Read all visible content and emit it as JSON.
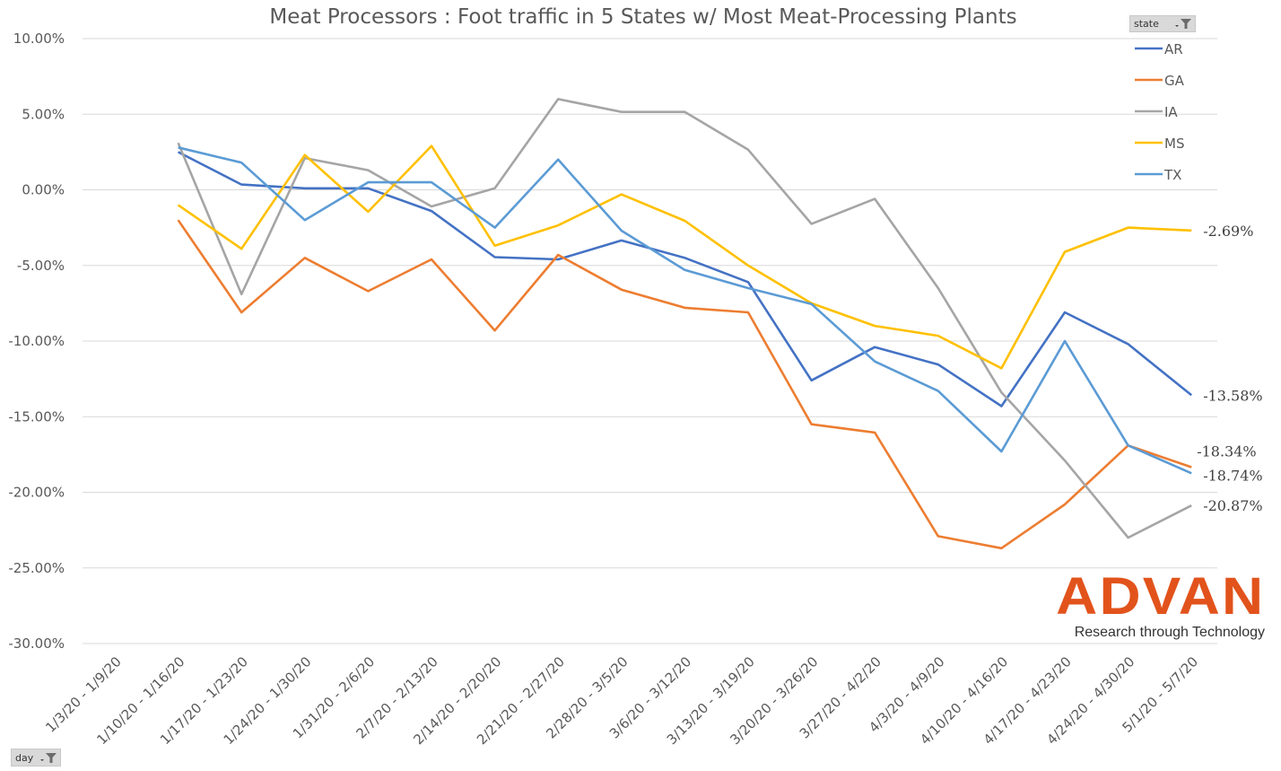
{
  "chart_data": {
    "type": "line",
    "title": "Meat Processors : Foot traffic in 5 States w/ Most Meat-Processing Plants",
    "xlabel": "",
    "ylabel": "",
    "ylim": [
      -30,
      10
    ],
    "ytick_step": 5,
    "ytick_labels": [
      "10.00%",
      "5.00%",
      "0.00%",
      "-5.00%",
      "-10.00%",
      "-15.00%",
      "-20.00%",
      "-25.00%",
      "-30.00%"
    ],
    "grid": true,
    "legend_position": "top-right",
    "categories": [
      "1/3/20 - 1/9/20",
      "1/10/20 - 1/16/20",
      "1/17/20 - 1/23/20",
      "1/24/20 - 1/30/20",
      "1/31/20 - 2/6/20",
      "2/7/20 - 2/13/20",
      "2/14/20 - 2/20/20",
      "2/21/20 - 2/27/20",
      "2/28/20 - 3/5/20",
      "3/6/20 - 3/12/20",
      "3/13/20 - 3/19/20",
      "3/20/20 - 3/26/20",
      "3/27/20 - 4/2/20",
      "4/3/20 - 4/9/20",
      "4/10/20 - 4/16/20",
      "4/17/20 - 4/23/20",
      "4/24/20 - 4/30/20",
      "5/1/20 - 5/7/20"
    ],
    "series": [
      {
        "name": "AR",
        "color": "#4472c4",
        "end_label": "-13.58%",
        "values": [
          null,
          2.5,
          0.35,
          0.1,
          0.1,
          -1.4,
          -4.45,
          -4.6,
          -3.35,
          -4.5,
          -6.1,
          -12.6,
          -10.4,
          -11.55,
          -14.3,
          -8.1,
          -10.2,
          -13.58
        ]
      },
      {
        "name": "GA",
        "color": "#ed7d31",
        "end_label": "-18.34%",
        "values": [
          null,
          -2.0,
          -8.1,
          -4.5,
          -6.7,
          -4.6,
          -9.3,
          -4.3,
          -6.6,
          -7.8,
          -8.1,
          -15.5,
          -16.05,
          -22.9,
          -23.7,
          -20.8,
          -16.9,
          -18.34
        ]
      },
      {
        "name": "IA",
        "color": "#a5a5a5",
        "end_label": "-20.87%",
        "values": [
          null,
          3.1,
          -6.9,
          2.1,
          1.3,
          -1.1,
          0.1,
          6.0,
          5.15,
          5.15,
          2.65,
          -2.25,
          -0.6,
          -6.5,
          -13.4,
          -17.9,
          -23.0,
          -20.87
        ]
      },
      {
        "name": "MS",
        "color": "#ffc000",
        "end_label": "-2.69%",
        "values": [
          null,
          -1.0,
          -3.9,
          2.3,
          -1.45,
          2.9,
          -3.7,
          -2.35,
          -0.3,
          -2.05,
          -5.0,
          -7.5,
          -9.0,
          -9.65,
          -11.8,
          -4.1,
          -2.5,
          -2.69
        ]
      },
      {
        "name": "TX",
        "color": "#5b9bd5",
        "end_label": "-18.74%",
        "values": [
          null,
          2.8,
          1.8,
          -2.0,
          0.5,
          0.5,
          -2.5,
          2.0,
          -2.7,
          -5.3,
          -6.5,
          -7.55,
          -11.35,
          -13.3,
          -17.3,
          -10.0,
          -16.9,
          -18.74
        ]
      }
    ]
  },
  "filters": {
    "series_field": "state",
    "axis_field": "day"
  },
  "brand": {
    "name": "ADVAN",
    "tagline": "Research through Technology",
    "color": "#e2531c"
  }
}
